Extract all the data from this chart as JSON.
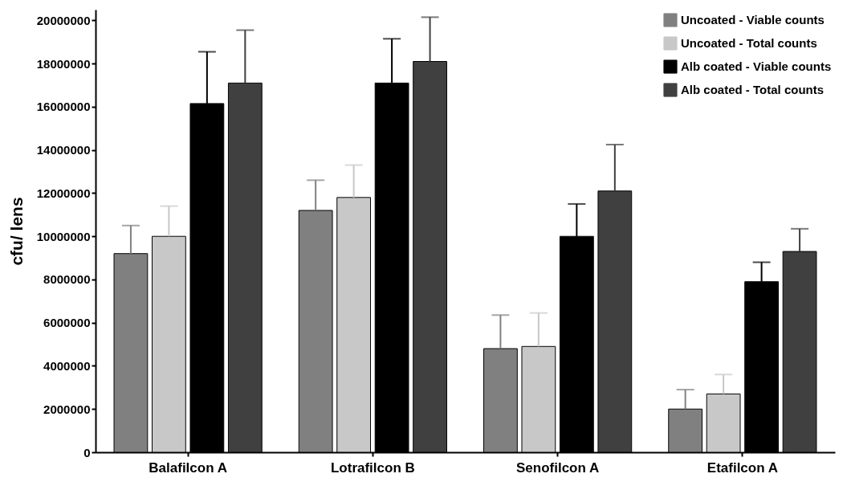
{
  "chart_data": {
    "type": "bar",
    "ylabel": "cfu/ lens",
    "categories": [
      "Balafilcon A",
      "Lotrafilcon B",
      "Senofilcon A",
      "Etafilcon A"
    ],
    "ylim": [
      0,
      20500000
    ],
    "yticks": [
      0,
      2000000,
      4000000,
      6000000,
      8000000,
      10000000,
      12000000,
      14000000,
      16000000,
      18000000,
      20000000
    ],
    "grid": false,
    "legend": "top right",
    "series": [
      {
        "name": "Uncoated - Viable counts",
        "color": "#808080",
        "values": [
          9200000,
          11200000,
          4800000,
          2000000
        ],
        "errors": [
          [
            9200000,
            10500000
          ],
          [
            11200000,
            12600000
          ],
          [
            4800000,
            6350000
          ],
          [
            2000000,
            2900000
          ]
        ]
      },
      {
        "name": "Uncoated - Total counts",
        "color": "#c8c8c8",
        "values": [
          10000000,
          11800000,
          4900000,
          2700000
        ],
        "errors": [
          [
            10000000,
            11400000
          ],
          [
            11800000,
            13300000
          ],
          [
            4900000,
            6450000
          ],
          [
            2700000,
            3600000
          ]
        ]
      },
      {
        "name": "Alb coated - Viable counts",
        "color": "#000000",
        "values": [
          16150000,
          17100000,
          10000000,
          7900000
        ],
        "errors": [
          [
            16150000,
            18550000
          ],
          [
            17100000,
            19150000
          ],
          [
            10000000,
            11500000
          ],
          [
            7900000,
            8800000
          ]
        ]
      },
      {
        "name": "Alb coated - Total counts",
        "color": "#404040",
        "values": [
          17100000,
          18100000,
          12100000,
          9300000
        ],
        "errors": [
          [
            17100000,
            19550000
          ],
          [
            18100000,
            20150000
          ],
          [
            12100000,
            14250000
          ],
          [
            9300000,
            10350000
          ]
        ]
      }
    ]
  }
}
